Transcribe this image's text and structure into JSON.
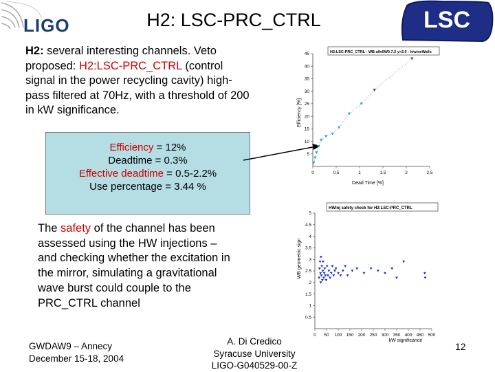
{
  "header": {
    "logo_left": "LIGO",
    "title": "H2: LSC-PRC_CTRL",
    "logo_right": "LSC"
  },
  "intro": {
    "lead": "H2:",
    "text1": " several interesting channels. Veto proposed: ",
    "channel": "H2:LSC-PRC_CTRL",
    "text2": " (control signal in the power recycling cavity) high-pass filtered at 70Hz, with a threshold of 200 in kW significance",
    "end": "."
  },
  "stats": {
    "efficiency_label": "Efficiency",
    "efficiency_value": " = 12%",
    "deadtime": "Deadtime = 0.3%",
    "effective_label": "Effective deadtime",
    "effective_value": " = 0.5-2.2%",
    "use_percentage": "Use percentage = 3.44 %"
  },
  "safety": {
    "text1": "The ",
    "highlight": "safety",
    "text2": " of the channel has been assessed using the HW injections – and checking whether the excitation in the mirror, simulating a gravitational wave burst could couple to the PRC_CTRL channel"
  },
  "footer": {
    "left_line1": "GWDAW9 – Annecy",
    "left_line2": "December 15-18, 2004",
    "center_line1": "A. Di Credico",
    "center_line2": "Syracuse University",
    "center_line3": "LIGO-G040529-00-Z",
    "page": "12"
  },
  "colors": {
    "highlight": "#cc0000",
    "box_bg": "#b4dde4",
    "marker": "#1a2fd0",
    "marker_cyan": "#19a8c8",
    "logo_blue": "#1b3a78"
  },
  "chart_data": [
    {
      "type": "scatter",
      "title": "H2:LSC-PRC_CTRL - WB a0v0W0.7.2 y>2.0 - h/wineWalls",
      "xlabel": "Dead Time [%]",
      "ylabel": "Efficiency [%]",
      "xlim": [
        0,
        2.5
      ],
      "ylim": [
        0,
        45
      ],
      "x_ticks": [
        "0",
        "0.5",
        "1",
        "1.5",
        "2",
        "2.5"
      ],
      "y_ticks": [
        "5",
        "10",
        "15",
        "20",
        "25",
        "30",
        "35",
        "40",
        "45"
      ],
      "series": [
        {
          "x": [
            0.02,
            0.05,
            0.08,
            0.12,
            0.18,
            0.28,
            0.42,
            0.56,
            0.78,
            1.04,
            1.32,
            2.12
          ],
          "y": [
            1.5,
            3.5,
            5.5,
            8.0,
            10.5,
            12.0,
            13.0,
            15.5,
            21.0,
            25.0,
            30.5,
            43.0
          ]
        }
      ],
      "grid": false
    },
    {
      "type": "scatter",
      "title": "HWinj safety check for H2:LSC-PRC_CTRL",
      "xlabel": "kW significance",
      "ylabel": "WB geometric sign",
      "xlim": [
        0,
        500
      ],
      "ylim": [
        0,
        5
      ],
      "x_ticks": [
        "0",
        "50",
        "100",
        "150",
        "200",
        "250",
        "300",
        "350",
        "400",
        "450",
        "500"
      ],
      "y_ticks": [
        "0.5",
        "1",
        "1.5",
        "2",
        "2.5",
        "3",
        "3.5",
        "4",
        "4.5",
        "5"
      ],
      "series": [
        {
          "x": [
            18,
            20,
            22,
            24,
            25,
            26,
            28,
            30,
            32,
            34,
            35,
            38,
            40,
            42,
            45,
            48,
            52,
            56,
            60,
            65,
            70,
            75,
            80,
            85,
            90,
            100,
            110,
            120,
            130,
            140,
            160,
            180,
            210,
            240,
            270,
            300,
            330,
            350,
            380,
            470,
            472
          ],
          "y": [
            2.2,
            2.6,
            2.9,
            2.4,
            2.0,
            3.1,
            2.3,
            2.7,
            2.1,
            2.5,
            2.9,
            2.2,
            2.4,
            2.6,
            2.3,
            2.1,
            2.7,
            2.3,
            2.5,
            2.2,
            2.4,
            2.7,
            2.3,
            2.5,
            2.6,
            2.4,
            2.3,
            2.5,
            2.7,
            2.3,
            2.5,
            2.6,
            2.4,
            2.6,
            2.5,
            2.4,
            2.6,
            2.2,
            2.9,
            2.4,
            2.2
          ]
        }
      ],
      "grid": false
    }
  ]
}
